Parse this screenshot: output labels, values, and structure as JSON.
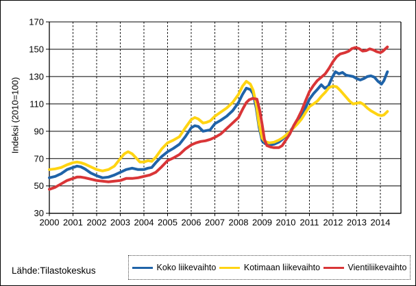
{
  "source_note": "Lähde:Tilastokeskus",
  "chart_data": {
    "type": "line",
    "title": "",
    "xlabel": "",
    "ylabel": "Indeksi (2010=100)",
    "ylim": [
      30,
      170
    ],
    "xlim": [
      2000,
      2014.9
    ],
    "y_ticks": [
      30,
      50,
      70,
      90,
      110,
      130,
      150,
      170
    ],
    "x_ticks": [
      2000,
      2001,
      2002,
      2003,
      2004,
      2005,
      2006,
      2007,
      2008,
      2009,
      2010,
      2011,
      2012,
      2013,
      2014
    ],
    "grid": {
      "horizontal": "solid",
      "vertical": "dashed"
    },
    "legend_position": "bottom",
    "axis_color": "#000000",
    "series": [
      {
        "name": "Koko liikevaihto",
        "color": "#1F63A8",
        "points": [
          [
            2000.0,
            56
          ],
          [
            2000.25,
            57
          ],
          [
            2000.5,
            59
          ],
          [
            2000.75,
            62
          ],
          [
            2001.0,
            63.5
          ],
          [
            2001.17,
            64.5
          ],
          [
            2001.33,
            64
          ],
          [
            2001.5,
            62.5
          ],
          [
            2001.75,
            59.5
          ],
          [
            2002.0,
            57.5
          ],
          [
            2002.25,
            56
          ],
          [
            2002.5,
            56.5
          ],
          [
            2002.75,
            58
          ],
          [
            2003.0,
            60
          ],
          [
            2003.25,
            62
          ],
          [
            2003.5,
            63
          ],
          [
            2003.75,
            62
          ],
          [
            2004.0,
            62
          ],
          [
            2004.17,
            63
          ],
          [
            2004.33,
            63.5
          ],
          [
            2004.5,
            67
          ],
          [
            2004.75,
            71.5
          ],
          [
            2005.0,
            75
          ],
          [
            2005.25,
            77.5
          ],
          [
            2005.5,
            80.5
          ],
          [
            2005.75,
            86
          ],
          [
            2006.0,
            92.5
          ],
          [
            2006.15,
            94
          ],
          [
            2006.3,
            93.5
          ],
          [
            2006.5,
            90
          ],
          [
            2006.65,
            90.5
          ],
          [
            2006.8,
            91
          ],
          [
            2007.0,
            95.5
          ],
          [
            2007.25,
            98
          ],
          [
            2007.5,
            101
          ],
          [
            2007.75,
            105
          ],
          [
            2008.0,
            111
          ],
          [
            2008.17,
            117
          ],
          [
            2008.33,
            121.5
          ],
          [
            2008.5,
            120.5
          ],
          [
            2008.62,
            117.5
          ],
          [
            2008.75,
            107
          ],
          [
            2008.87,
            93
          ],
          [
            2009.0,
            83
          ],
          [
            2009.12,
            81
          ],
          [
            2009.3,
            80
          ],
          [
            2009.5,
            80.5
          ],
          [
            2009.7,
            82
          ],
          [
            2009.85,
            84
          ],
          [
            2010.0,
            86.5
          ],
          [
            2010.17,
            89.5
          ],
          [
            2010.33,
            93.5
          ],
          [
            2010.5,
            97
          ],
          [
            2010.67,
            101.5
          ],
          [
            2010.83,
            107
          ],
          [
            2011.0,
            113.5
          ],
          [
            2011.17,
            117.5
          ],
          [
            2011.33,
            120.5
          ],
          [
            2011.5,
            124
          ],
          [
            2011.65,
            121.5
          ],
          [
            2011.8,
            123
          ],
          [
            2011.95,
            129
          ],
          [
            2012.1,
            133.5
          ],
          [
            2012.25,
            132
          ],
          [
            2012.4,
            133
          ],
          [
            2012.55,
            131
          ],
          [
            2012.7,
            130.5
          ],
          [
            2012.85,
            130
          ],
          [
            2013.0,
            128.5
          ],
          [
            2013.15,
            127.5
          ],
          [
            2013.3,
            128.5
          ],
          [
            2013.45,
            130
          ],
          [
            2013.6,
            130.5
          ],
          [
            2013.75,
            129.5
          ],
          [
            2013.9,
            126.5
          ],
          [
            2014.05,
            124.5
          ],
          [
            2014.15,
            127
          ],
          [
            2014.3,
            133.5
          ]
        ]
      },
      {
        "name": "Kotimaan liikevaihto",
        "color": "#FFD412",
        "points": [
          [
            2000.0,
            62
          ],
          [
            2000.25,
            62.5
          ],
          [
            2000.5,
            63.5
          ],
          [
            2000.75,
            65.5
          ],
          [
            2001.0,
            67
          ],
          [
            2001.17,
            67.5
          ],
          [
            2001.33,
            67
          ],
          [
            2001.5,
            66
          ],
          [
            2001.75,
            64
          ],
          [
            2002.0,
            62
          ],
          [
            2002.25,
            61
          ],
          [
            2002.5,
            62
          ],
          [
            2002.75,
            64.5
          ],
          [
            2003.0,
            70
          ],
          [
            2003.17,
            73.5
          ],
          [
            2003.33,
            75
          ],
          [
            2003.5,
            73.5
          ],
          [
            2003.67,
            70.5
          ],
          [
            2003.83,
            67.5
          ],
          [
            2004.0,
            67.5
          ],
          [
            2004.17,
            68.5
          ],
          [
            2004.33,
            68
          ],
          [
            2004.5,
            71
          ],
          [
            2004.75,
            77
          ],
          [
            2005.0,
            81.5
          ],
          [
            2005.25,
            83.5
          ],
          [
            2005.5,
            86
          ],
          [
            2005.75,
            92.5
          ],
          [
            2006.0,
            98.5
          ],
          [
            2006.15,
            100
          ],
          [
            2006.3,
            99
          ],
          [
            2006.5,
            96
          ],
          [
            2006.65,
            96.5
          ],
          [
            2006.8,
            97.5
          ],
          [
            2007.0,
            101
          ],
          [
            2007.25,
            104
          ],
          [
            2007.5,
            107
          ],
          [
            2007.75,
            111
          ],
          [
            2008.0,
            117
          ],
          [
            2008.17,
            123
          ],
          [
            2008.33,
            126.5
          ],
          [
            2008.5,
            124.5
          ],
          [
            2008.62,
            120
          ],
          [
            2008.75,
            110
          ],
          [
            2008.87,
            95
          ],
          [
            2009.0,
            85
          ],
          [
            2009.12,
            82.5
          ],
          [
            2009.3,
            81.5
          ],
          [
            2009.5,
            82
          ],
          [
            2009.7,
            83.5
          ],
          [
            2009.85,
            85
          ],
          [
            2010.0,
            87
          ],
          [
            2010.17,
            89.5
          ],
          [
            2010.33,
            92.5
          ],
          [
            2010.5,
            95.5
          ],
          [
            2010.67,
            99
          ],
          [
            2010.83,
            103.5
          ],
          [
            2011.0,
            108
          ],
          [
            2011.17,
            110
          ],
          [
            2011.33,
            112
          ],
          [
            2011.5,
            115.5
          ],
          [
            2011.67,
            118.5
          ],
          [
            2011.83,
            122
          ],
          [
            2012.0,
            123
          ],
          [
            2012.15,
            122.5
          ],
          [
            2012.3,
            120
          ],
          [
            2012.5,
            116
          ],
          [
            2012.7,
            112
          ],
          [
            2012.85,
            110
          ],
          [
            2013.0,
            110.5
          ],
          [
            2013.15,
            111
          ],
          [
            2013.3,
            109.5
          ],
          [
            2013.45,
            107
          ],
          [
            2013.6,
            105
          ],
          [
            2013.75,
            103.5
          ],
          [
            2013.9,
            102
          ],
          [
            2014.05,
            101.5
          ],
          [
            2014.15,
            102
          ],
          [
            2014.3,
            104.5
          ]
        ]
      },
      {
        "name": "Vientiliikevaihto",
        "color": "#D93537",
        "points": [
          [
            2000.0,
            47.5
          ],
          [
            2000.25,
            49
          ],
          [
            2000.5,
            51.5
          ],
          [
            2000.75,
            54
          ],
          [
            2001.0,
            55.5
          ],
          [
            2001.17,
            56.5
          ],
          [
            2001.33,
            56.5
          ],
          [
            2001.5,
            56
          ],
          [
            2001.75,
            55
          ],
          [
            2002.0,
            54
          ],
          [
            2002.25,
            53.5
          ],
          [
            2002.5,
            53
          ],
          [
            2002.75,
            53.5
          ],
          [
            2003.0,
            54
          ],
          [
            2003.25,
            55.5
          ],
          [
            2003.5,
            55.5
          ],
          [
            2003.75,
            56
          ],
          [
            2004.0,
            57
          ],
          [
            2004.25,
            58
          ],
          [
            2004.5,
            60
          ],
          [
            2004.75,
            64
          ],
          [
            2005.0,
            68.5
          ],
          [
            2005.25,
            70.5
          ],
          [
            2005.5,
            73
          ],
          [
            2005.75,
            77
          ],
          [
            2006.0,
            80
          ],
          [
            2006.2,
            81.5
          ],
          [
            2006.4,
            82.5
          ],
          [
            2006.6,
            83
          ],
          [
            2006.8,
            84
          ],
          [
            2007.0,
            85.5
          ],
          [
            2007.25,
            88
          ],
          [
            2007.5,
            92
          ],
          [
            2007.75,
            96
          ],
          [
            2008.0,
            100
          ],
          [
            2008.17,
            106
          ],
          [
            2008.33,
            111
          ],
          [
            2008.45,
            113
          ],
          [
            2008.6,
            114
          ],
          [
            2008.78,
            113.5
          ],
          [
            2008.9,
            105
          ],
          [
            2009.0,
            95
          ],
          [
            2009.1,
            84
          ],
          [
            2009.2,
            79.5
          ],
          [
            2009.35,
            78.5
          ],
          [
            2009.5,
            78
          ],
          [
            2009.7,
            78
          ],
          [
            2009.85,
            79.5
          ],
          [
            2010.0,
            83.5
          ],
          [
            2010.17,
            88
          ],
          [
            2010.33,
            94
          ],
          [
            2010.5,
            99
          ],
          [
            2010.67,
            105
          ],
          [
            2010.83,
            112
          ],
          [
            2011.0,
            119
          ],
          [
            2011.17,
            123.5
          ],
          [
            2011.33,
            127
          ],
          [
            2011.5,
            129.5
          ],
          [
            2011.67,
            132
          ],
          [
            2011.83,
            136
          ],
          [
            2012.0,
            141
          ],
          [
            2012.15,
            144.5
          ],
          [
            2012.3,
            146.5
          ],
          [
            2012.5,
            147.5
          ],
          [
            2012.65,
            148.5
          ],
          [
            2012.8,
            150.5
          ],
          [
            2012.95,
            151.3
          ],
          [
            2013.1,
            150.5
          ],
          [
            2013.25,
            148.7
          ],
          [
            2013.4,
            149
          ],
          [
            2013.55,
            150.3
          ],
          [
            2013.7,
            149.5
          ],
          [
            2013.85,
            148.2
          ],
          [
            2014.0,
            147.5
          ],
          [
            2014.1,
            148.5
          ],
          [
            2014.3,
            151.7
          ]
        ]
      }
    ]
  }
}
